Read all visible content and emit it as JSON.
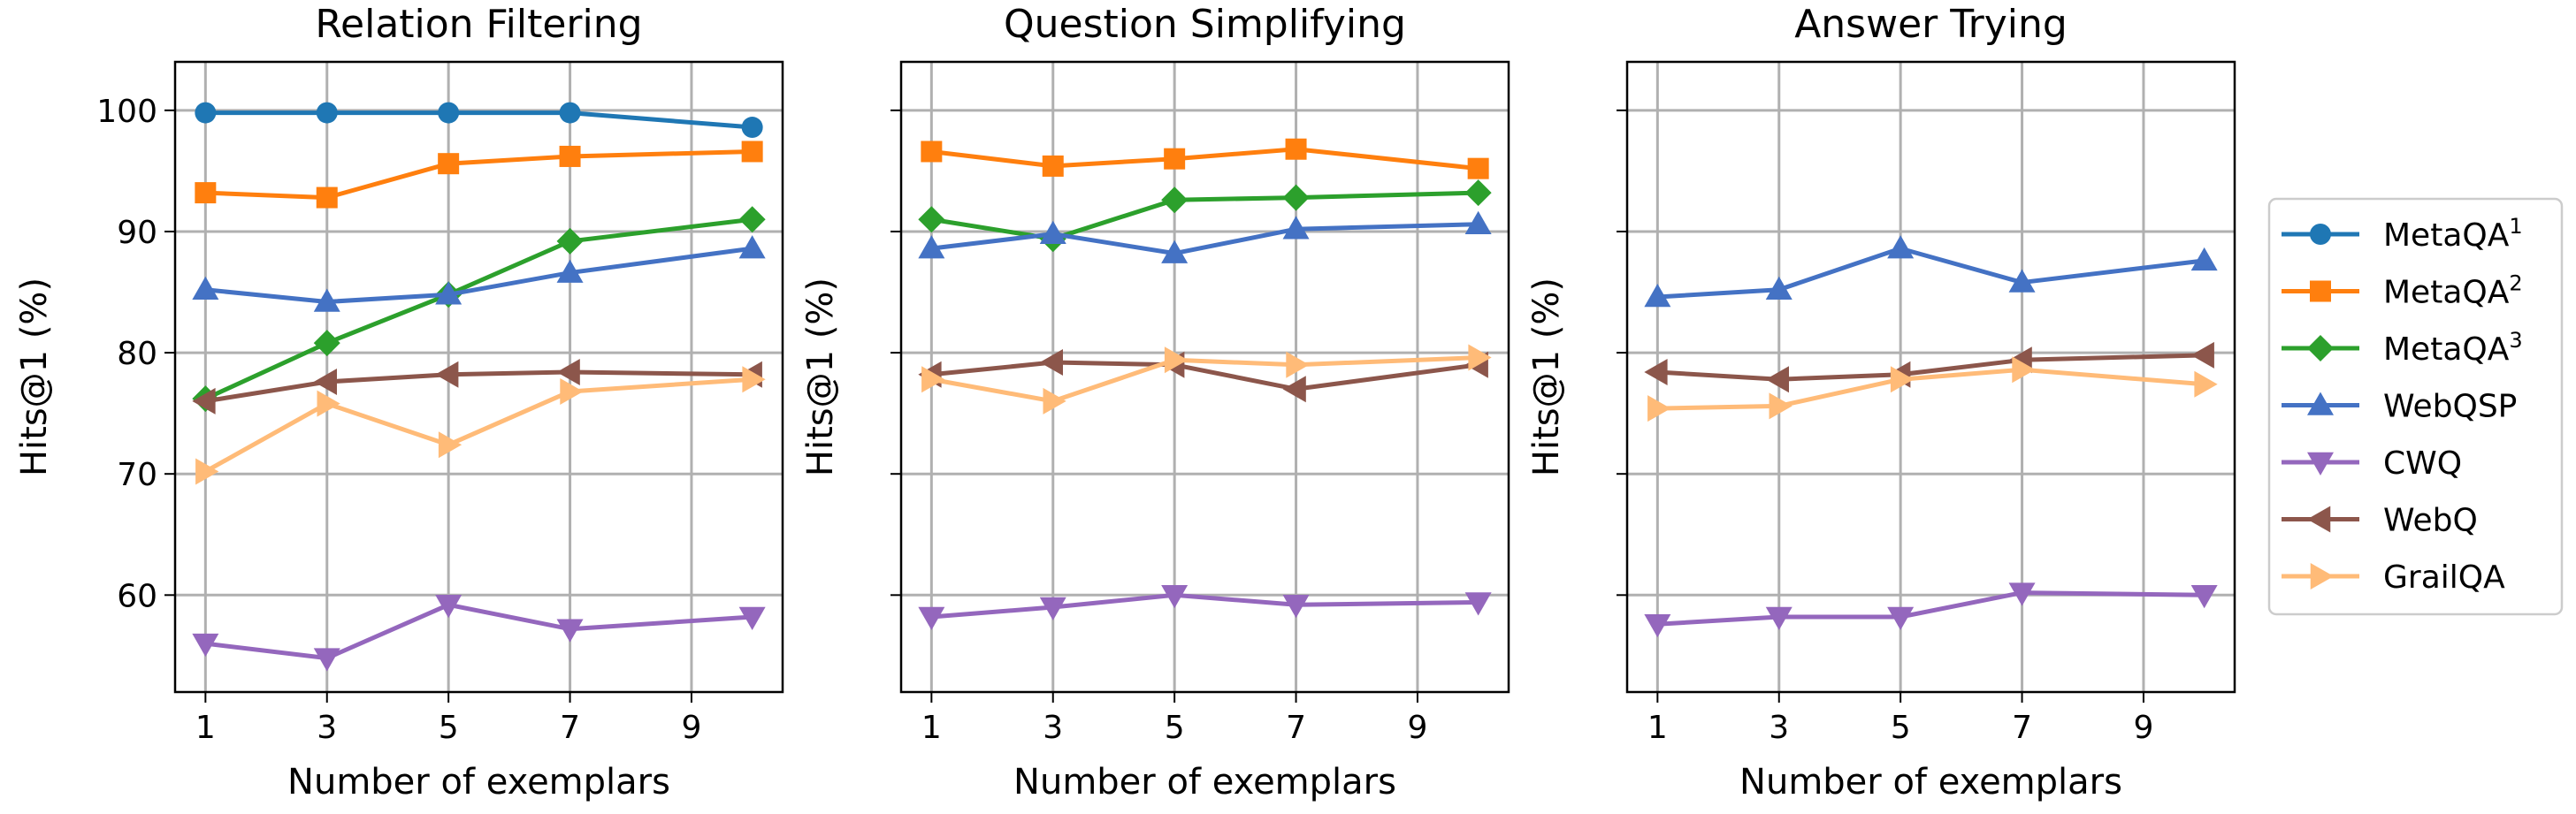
{
  "chart_data": [
    {
      "type": "line",
      "title": "Relation Filtering",
      "xlabel": "Number of exemplars",
      "ylabel": "Hits@1 (%)",
      "x": [
        1,
        3,
        5,
        7,
        10
      ],
      "xticks": [
        1,
        3,
        5,
        7,
        9
      ],
      "yticks": [
        60,
        70,
        80,
        90,
        100
      ],
      "ylim": [
        52,
        104
      ],
      "xlim": [
        0.5,
        10.5
      ],
      "series": [
        {
          "name": "MetaQA1",
          "values": [
            99.8,
            99.8,
            99.8,
            99.8,
            98.6
          ]
        },
        {
          "name": "MetaQA2",
          "values": [
            93.2,
            92.8,
            95.6,
            96.2,
            96.6
          ]
        },
        {
          "name": "MetaQA3",
          "values": [
            76.2,
            80.8,
            84.8,
            89.2,
            91.0
          ]
        },
        {
          "name": "WebQSP",
          "values": [
            85.2,
            84.2,
            84.8,
            86.6,
            88.6
          ]
        },
        {
          "name": "CWQ",
          "values": [
            56.0,
            54.8,
            59.2,
            57.2,
            58.2
          ]
        },
        {
          "name": "WebQ",
          "values": [
            76.0,
            77.6,
            78.2,
            78.4,
            78.2
          ]
        },
        {
          "name": "GrailQA",
          "values": [
            70.2,
            75.8,
            72.4,
            76.8,
            77.8
          ]
        }
      ]
    },
    {
      "type": "line",
      "title": "Question Simplifying",
      "xlabel": "Number of exemplars",
      "ylabel": "Hits@1 (%)",
      "x": [
        1,
        3,
        5,
        7,
        10
      ],
      "xticks": [
        1,
        3,
        5,
        7,
        9
      ],
      "yticks": [
        60,
        70,
        80,
        90,
        100
      ],
      "ylim": [
        52,
        104
      ],
      "xlim": [
        0.5,
        10.5
      ],
      "series": [
        {
          "name": "MetaQA2",
          "values": [
            96.6,
            95.4,
            96.0,
            96.8,
            95.2
          ]
        },
        {
          "name": "MetaQA3",
          "values": [
            91.0,
            89.4,
            92.6,
            92.8,
            93.2
          ]
        },
        {
          "name": "WebQSP",
          "values": [
            88.6,
            89.8,
            88.2,
            90.2,
            90.6
          ]
        },
        {
          "name": "CWQ",
          "values": [
            58.2,
            59.0,
            60.0,
            59.2,
            59.4
          ]
        },
        {
          "name": "WebQ",
          "values": [
            78.2,
            79.2,
            79.0,
            77.0,
            79.0
          ]
        },
        {
          "name": "GrailQA",
          "values": [
            77.8,
            76.0,
            79.4,
            79.0,
            79.6
          ]
        }
      ]
    },
    {
      "type": "line",
      "title": "Answer Trying",
      "xlabel": "Number of exemplars",
      "ylabel": "Hits@1 (%)",
      "x": [
        1,
        3,
        5,
        7,
        10
      ],
      "xticks": [
        1,
        3,
        5,
        7,
        9
      ],
      "yticks": [
        60,
        70,
        80,
        90,
        100
      ],
      "ylim": [
        52,
        104
      ],
      "xlim": [
        0.5,
        10.5
      ],
      "series": [
        {
          "name": "WebQSP",
          "values": [
            84.6,
            85.2,
            88.6,
            85.8,
            87.6
          ]
        },
        {
          "name": "CWQ",
          "values": [
            57.6,
            58.2,
            58.2,
            60.2,
            60.0
          ]
        },
        {
          "name": "WebQ",
          "values": [
            78.4,
            77.8,
            78.2,
            79.4,
            79.8
          ]
        },
        {
          "name": "GrailQA",
          "values": [
            75.4,
            75.6,
            77.8,
            78.6,
            77.4
          ]
        }
      ]
    }
  ],
  "legend": {
    "position": "right",
    "entries": [
      {
        "name": "MetaQA1",
        "base": "MetaQA",
        "sup": "1",
        "color": "#1f77b4",
        "marker": "circle"
      },
      {
        "name": "MetaQA2",
        "base": "MetaQA",
        "sup": "2",
        "color": "#ff7f0e",
        "marker": "square"
      },
      {
        "name": "MetaQA3",
        "base": "MetaQA",
        "sup": "3",
        "color": "#2ca02c",
        "marker": "diamond"
      },
      {
        "name": "WebQSP",
        "base": "WebQSP",
        "sup": "",
        "color": "#4472c4",
        "marker": "triangle-up"
      },
      {
        "name": "CWQ",
        "base": "CWQ",
        "sup": "",
        "color": "#9467bd",
        "marker": "triangle-down"
      },
      {
        "name": "WebQ",
        "base": "WebQ",
        "sup": "",
        "color": "#8c564b",
        "marker": "triangle-left"
      },
      {
        "name": "GrailQA",
        "base": "GrailQA",
        "sup": "",
        "color": "#ffbb78",
        "marker": "triangle-right"
      }
    ]
  }
}
